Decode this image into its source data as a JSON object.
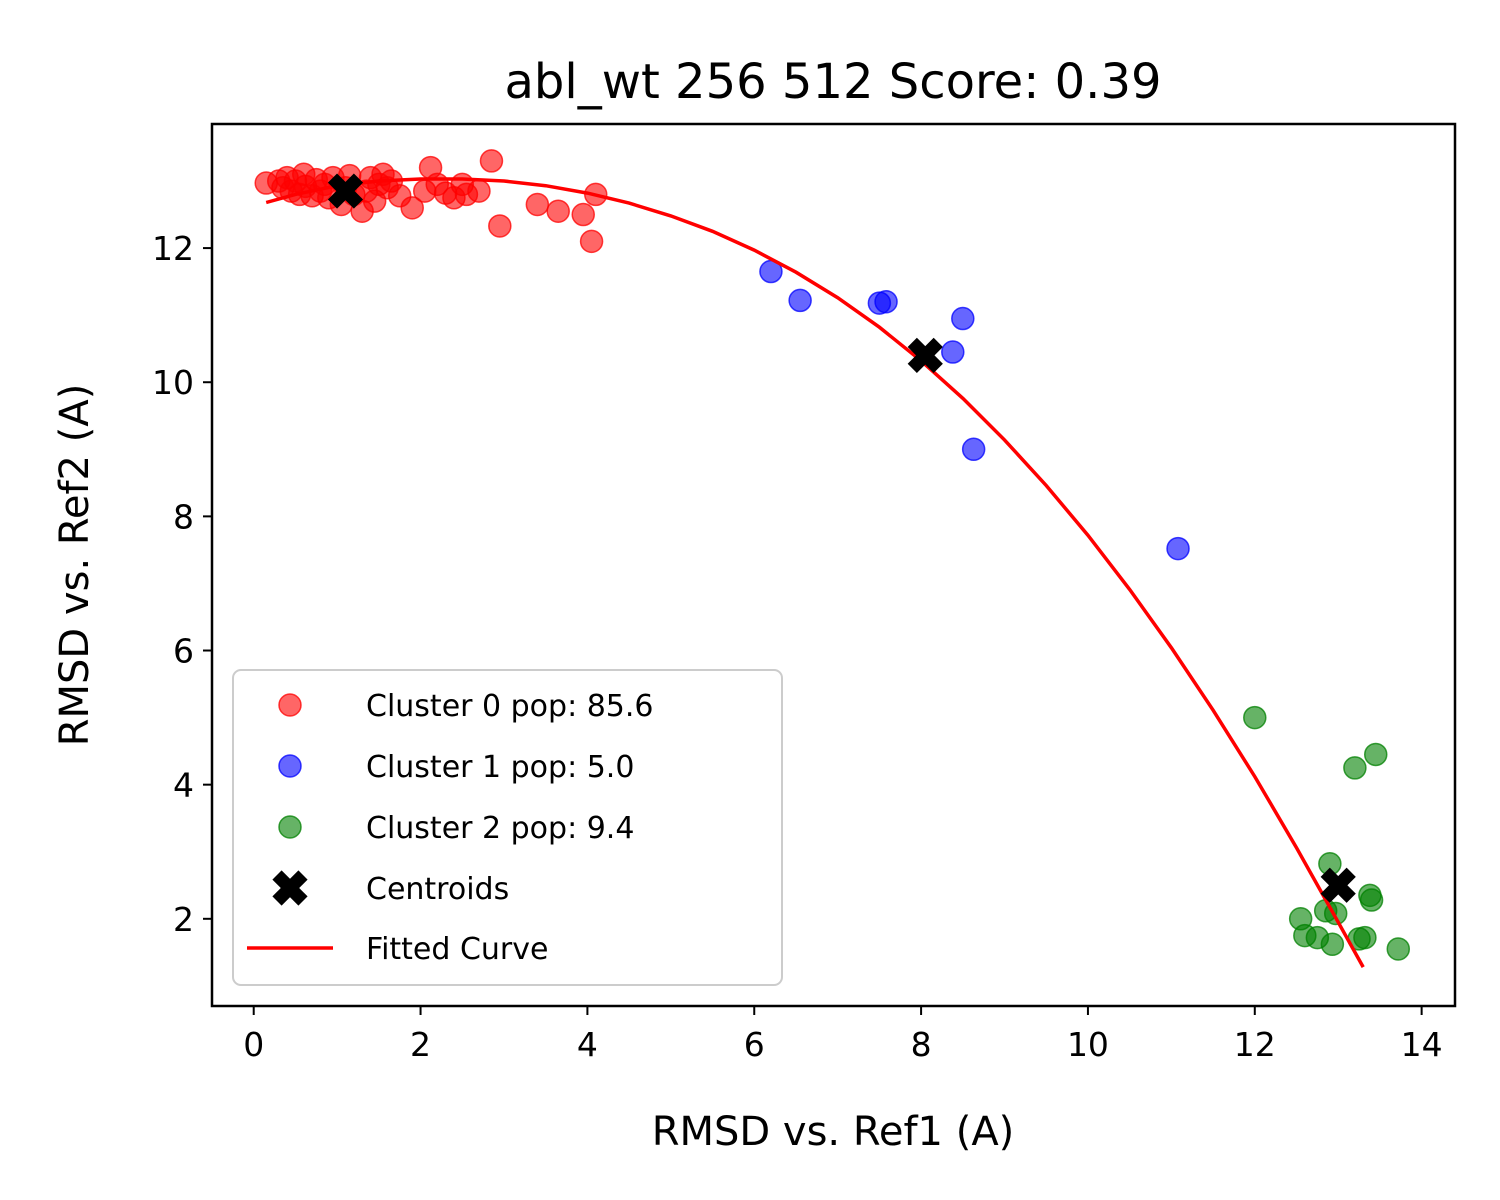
{
  "chart_data": {
    "type": "scatter",
    "title": "abl_wt 256 512 Score: 0.39",
    "xlabel": "RMSD vs. Ref1 (A)",
    "ylabel": "RMSD vs. Ref2 (A)",
    "xlim": [
      -0.5,
      14.4
    ],
    "ylim": [
      0.7,
      13.85
    ],
    "xticks": [
      0,
      2,
      4,
      6,
      8,
      10,
      12,
      14
    ],
    "yticks": [
      2,
      4,
      6,
      8,
      10,
      12
    ],
    "grid": false,
    "legend_position": "lower-left",
    "series": [
      {
        "name": "Cluster 0 pop: 85.6",
        "color": "#ff0000",
        "opacity": 0.6,
        "points": [
          [
            0.15,
            12.97
          ],
          [
            0.3,
            13.0
          ],
          [
            0.35,
            12.9
          ],
          [
            0.4,
            13.05
          ],
          [
            0.45,
            12.85
          ],
          [
            0.5,
            13.0
          ],
          [
            0.55,
            12.8
          ],
          [
            0.6,
            13.1
          ],
          [
            0.62,
            12.92
          ],
          [
            0.7,
            12.78
          ],
          [
            0.75,
            13.02
          ],
          [
            0.8,
            12.85
          ],
          [
            0.85,
            12.95
          ],
          [
            0.9,
            12.75
          ],
          [
            0.95,
            13.05
          ],
          [
            1.05,
            12.65
          ],
          [
            1.1,
            12.9
          ],
          [
            1.15,
            13.08
          ],
          [
            1.2,
            12.8
          ],
          [
            1.3,
            12.55
          ],
          [
            1.35,
            12.85
          ],
          [
            1.4,
            13.05
          ],
          [
            1.45,
            12.7
          ],
          [
            1.5,
            12.95
          ],
          [
            1.55,
            13.1
          ],
          [
            1.6,
            12.9
          ],
          [
            1.65,
            13.0
          ],
          [
            1.75,
            12.78
          ],
          [
            1.9,
            12.6
          ],
          [
            2.05,
            12.85
          ],
          [
            2.12,
            13.2
          ],
          [
            2.2,
            12.95
          ],
          [
            2.3,
            12.82
          ],
          [
            2.4,
            12.75
          ],
          [
            2.5,
            12.95
          ],
          [
            2.55,
            12.8
          ],
          [
            2.7,
            12.85
          ],
          [
            2.85,
            13.3
          ],
          [
            2.95,
            12.33
          ],
          [
            3.4,
            12.65
          ],
          [
            3.65,
            12.55
          ],
          [
            3.95,
            12.5
          ],
          [
            4.05,
            12.1
          ],
          [
            4.1,
            12.8
          ]
        ]
      },
      {
        "name": "Cluster 1 pop: 5.0",
        "color": "#0000ff",
        "opacity": 0.6,
        "points": [
          [
            6.2,
            11.65
          ],
          [
            6.55,
            11.22
          ],
          [
            7.5,
            11.18
          ],
          [
            7.58,
            11.2
          ],
          [
            8.38,
            10.45
          ],
          [
            8.5,
            10.95
          ],
          [
            8.63,
            9.0
          ],
          [
            11.08,
            7.52
          ]
        ]
      },
      {
        "name": "Cluster 2 pop: 9.4",
        "color": "#008000",
        "opacity": 0.6,
        "points": [
          [
            12.0,
            5.0
          ],
          [
            12.55,
            2.0
          ],
          [
            12.6,
            1.75
          ],
          [
            12.75,
            1.72
          ],
          [
            12.85,
            2.12
          ],
          [
            12.9,
            2.82
          ],
          [
            12.93,
            1.62
          ],
          [
            12.97,
            2.08
          ],
          [
            13.2,
            4.25
          ],
          [
            13.25,
            1.7
          ],
          [
            13.32,
            1.72
          ],
          [
            13.38,
            2.35
          ],
          [
            13.4,
            2.28
          ],
          [
            13.45,
            4.45
          ],
          [
            13.72,
            1.55
          ]
        ]
      }
    ],
    "centroids": {
      "name": "Centroids",
      "color": "#000000",
      "points": [
        [
          1.1,
          12.85
        ],
        [
          8.05,
          10.4
        ],
        [
          13.0,
          2.5
        ]
      ]
    },
    "fitted_curve": {
      "name": "Fitted Curve",
      "color": "#ff0000",
      "points": [
        [
          0.15,
          12.68
        ],
        [
          0.5,
          12.8
        ],
        [
          1.0,
          12.93
        ],
        [
          1.5,
          13.0
        ],
        [
          2.0,
          13.03
        ],
        [
          2.5,
          13.03
        ],
        [
          3.0,
          13.0
        ],
        [
          3.5,
          12.93
        ],
        [
          4.0,
          12.82
        ],
        [
          4.5,
          12.67
        ],
        [
          5.0,
          12.48
        ],
        [
          5.5,
          12.25
        ],
        [
          6.0,
          11.97
        ],
        [
          6.5,
          11.64
        ],
        [
          7.0,
          11.26
        ],
        [
          7.5,
          10.82
        ],
        [
          8.0,
          10.32
        ],
        [
          8.5,
          9.76
        ],
        [
          9.0,
          9.14
        ],
        [
          9.5,
          8.46
        ],
        [
          10.0,
          7.72
        ],
        [
          10.5,
          6.91
        ],
        [
          11.0,
          6.04
        ],
        [
          11.5,
          5.11
        ],
        [
          12.0,
          4.12
        ],
        [
          12.5,
          3.06
        ],
        [
          13.0,
          1.95
        ],
        [
          13.3,
          1.28
        ]
      ]
    }
  }
}
